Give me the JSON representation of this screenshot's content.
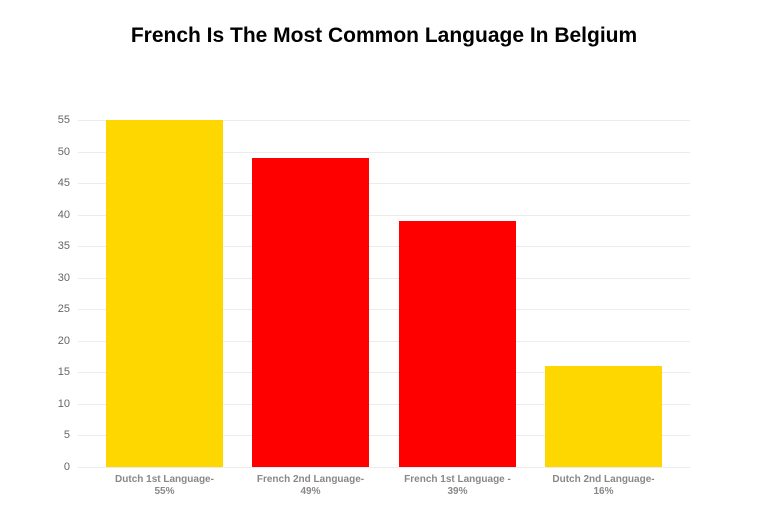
{
  "chart_data": {
    "type": "bar",
    "title": "French Is The Most Common Language In Belgium",
    "categories": [
      "Dutch 1st Language-\n55%",
      "French 2nd Language-\n49%",
      "French 1st Language -\n39%",
      "Dutch 2nd Language-\n16%"
    ],
    "category_lines": [
      [
        "Dutch 1st Language-",
        "55%"
      ],
      [
        "French 2nd Language-",
        "49%"
      ],
      [
        "French 1st Language -",
        "39%"
      ],
      [
        "Dutch 2nd Language-",
        "16%"
      ]
    ],
    "values": [
      55,
      49,
      39,
      16
    ],
    "colors": [
      "#FFD700",
      "#FF0000",
      "#FF0000",
      "#FFD700"
    ],
    "xlabel": "",
    "ylabel": "",
    "ylim": [
      0,
      55
    ],
    "yticks": [
      "0",
      "5",
      "10",
      "15",
      "20",
      "25",
      "30",
      "35",
      "40",
      "45",
      "50",
      "55"
    ],
    "grid": true,
    "legend": null
  }
}
